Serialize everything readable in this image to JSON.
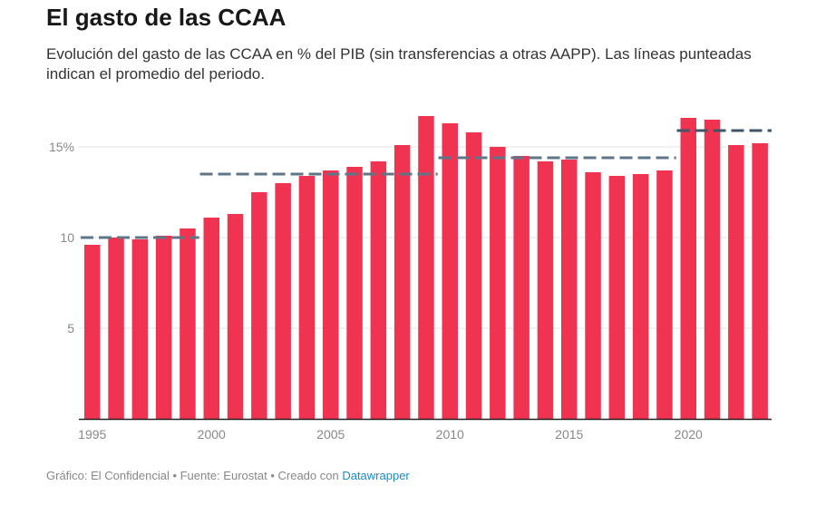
{
  "title": "El gasto de las CCAA",
  "subtitle": "Evolución del gasto de las CCAA en % del PIB (sin transferencias a otras AAPP). Las líneas punteadas indican el promedio del periodo.",
  "footer": {
    "prefix": "Gráfico: El Confidencial • Fuente: Eurostat • Creado con ",
    "link": "Datawrapper"
  },
  "colors": {
    "bar": "#ef3351",
    "average_line": "#607686",
    "average_line_dark": "#3f5566",
    "axis": "#222222",
    "grid": "#e6e6e6"
  },
  "chart_data": {
    "type": "bar",
    "ylim": [
      0,
      17
    ],
    "grid": true,
    "y_ticks": [
      {
        "value": 5,
        "label": "5"
      },
      {
        "value": 10,
        "label": "10"
      },
      {
        "value": 15,
        "label": "15%"
      }
    ],
    "x_ticks": [
      "1995",
      "2000",
      "2005",
      "2010",
      "2015",
      "2020"
    ],
    "categories": [
      1995,
      1996,
      1997,
      1998,
      1999,
      2000,
      2001,
      2002,
      2003,
      2004,
      2005,
      2006,
      2007,
      2008,
      2009,
      2010,
      2011,
      2012,
      2013,
      2014,
      2015,
      2016,
      2017,
      2018,
      2019,
      2020,
      2021,
      2022,
      2023
    ],
    "values": [
      9.6,
      10.0,
      9.9,
      10.1,
      10.5,
      11.1,
      11.3,
      12.5,
      13.0,
      13.4,
      13.7,
      13.9,
      14.2,
      15.1,
      16.7,
      16.3,
      15.8,
      15.0,
      14.5,
      14.2,
      14.3,
      13.6,
      13.4,
      13.5,
      13.7,
      16.6,
      16.5,
      15.1,
      15.2
    ],
    "period_averages": [
      {
        "start": 1995,
        "end": 1999,
        "value": 10.0
      },
      {
        "start": 2000,
        "end": 2009,
        "value": 13.5
      },
      {
        "start": 2010,
        "end": 2019,
        "value": 14.4
      },
      {
        "start": 2020,
        "end": 2023,
        "value": 15.9
      }
    ]
  }
}
